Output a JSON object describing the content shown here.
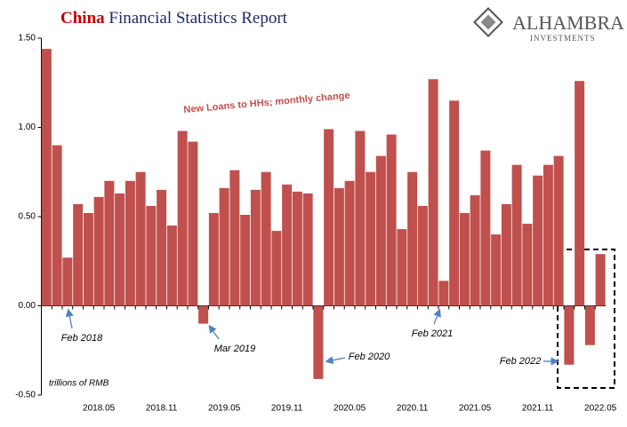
{
  "chart_data": {
    "type": "bar",
    "title_prefix": "China",
    "title": "Financial Statistics Report",
    "logo": [
      "ALHAMBRA",
      "INVESTMENTS"
    ],
    "subtitle": "New Loans to HHs; monthly change",
    "y_label": "trillions of RMB",
    "annotations": [
      "Feb 2018",
      "Mar 2019",
      "Feb 2020",
      "Feb 2021",
      "Feb 2022"
    ],
    "categories": [
      null,
      null,
      null,
      null,
      null,
      "2018.05",
      null,
      null,
      null,
      null,
      null,
      "2018.11",
      null,
      null,
      null,
      null,
      null,
      "2019.05",
      null,
      null,
      null,
      null,
      null,
      "2019.11",
      null,
      null,
      null,
      null,
      null,
      "2020.05",
      null,
      null,
      null,
      null,
      null,
      "2020.11",
      null,
      null,
      null,
      null,
      null,
      "2021.05",
      null,
      null,
      null,
      null,
      null,
      "2021.11",
      null,
      null,
      null,
      null,
      null,
      "2022.05"
    ],
    "values": [
      1.44,
      0.9,
      0.27,
      0.57,
      0.52,
      0.61,
      0.7,
      0.63,
      0.7,
      0.75,
      0.56,
      0.65,
      0.45,
      0.98,
      0.92,
      -0.1,
      0.52,
      0.66,
      0.76,
      0.51,
      0.65,
      0.75,
      0.42,
      0.68,
      0.64,
      0.63,
      -0.41,
      0.99,
      0.66,
      0.7,
      0.98,
      0.75,
      0.84,
      0.96,
      0.43,
      0.75,
      0.56,
      1.27,
      0.14,
      1.15,
      0.52,
      0.62,
      0.87,
      0.4,
      0.57,
      0.79,
      0.46,
      0.73,
      0.79,
      0.84,
      -0.33,
      1.26,
      -0.22,
      0.29
    ],
    "color": "#c0504d",
    "ylim": [
      -0.5,
      1.5
    ],
    "yticks": [
      {
        "value": -0.5,
        "label": "-0.50"
      },
      {
        "value": 0,
        "label": "0.00"
      },
      {
        "value": 0.5,
        "label": "0.50"
      },
      {
        "value": 1,
        "label": "1.00"
      },
      {
        "value": 1.5,
        "label": "1.50"
      }
    ],
    "grid": false
  }
}
